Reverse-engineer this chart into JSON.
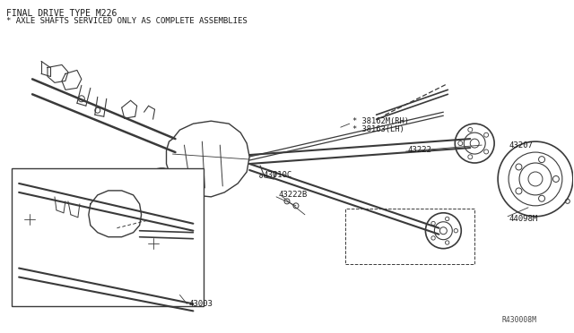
{
  "title_line1": "FINAL DRIVE TYPE M226",
  "title_line2": "* AXLE SHAFTS SERVICED ONLY AS COMPLETE ASSEMBLIES",
  "bg_color": "#ffffff",
  "line_color": "#3a3a3a",
  "text_color": "#1a1a1a",
  "part_labels": {
    "38162M_RH": "* 38162M(RH)",
    "38163_LH": "* 38163(LH)",
    "43222": "43222",
    "43010C": "43010C",
    "43222B": "43222B",
    "43003": "43003",
    "43207": "43207",
    "44098M": "44098M",
    "ref": "R430008M"
  },
  "figsize": [
    6.4,
    3.72
  ],
  "dpi": 100
}
